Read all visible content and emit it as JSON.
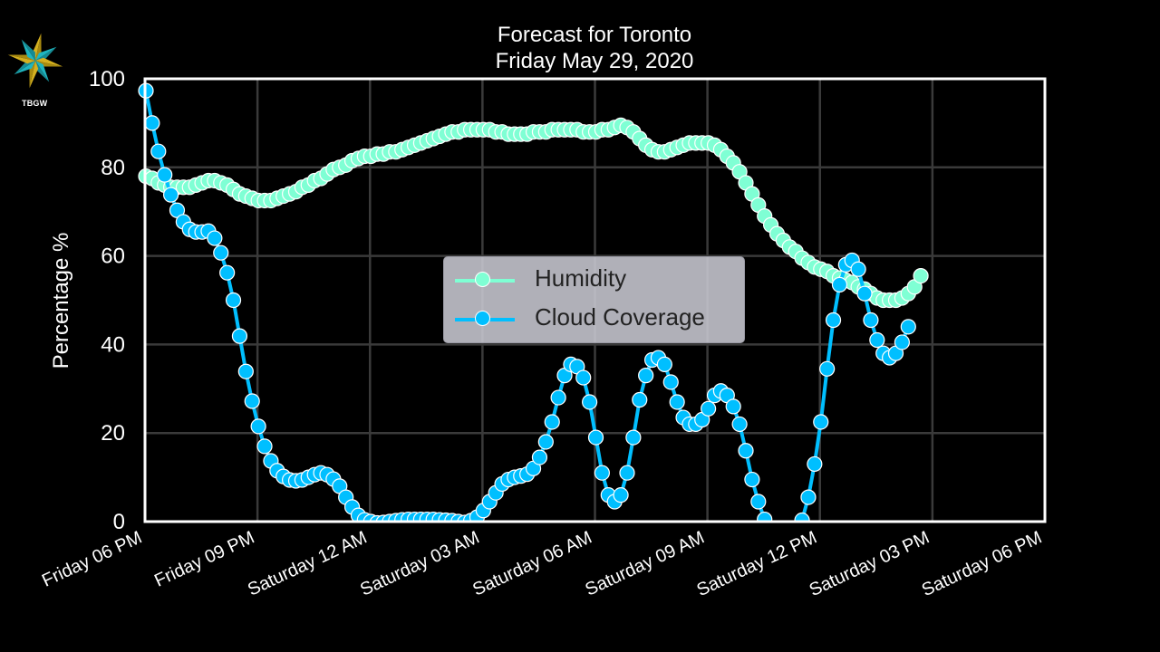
{
  "header": {
    "logo_text": "TBGW",
    "title_line1": "Forecast for Toronto",
    "title_line2": "Friday May 29, 2020"
  },
  "colors": {
    "background": "#000000",
    "humidity": "#7fffd4",
    "cloud": "#00bfff",
    "grid": "#3a3a3a",
    "axes": "#ffffff",
    "legend_bg": "#c8c8d2"
  },
  "chart_data": {
    "type": "line",
    "title": "Forecast for Toronto\nFriday May 29, 2020",
    "xlabel": "",
    "ylabel": "Percentage %",
    "ylim": [
      0,
      100
    ],
    "yticks": [
      0,
      20,
      40,
      60,
      80,
      100
    ],
    "xticks": [
      "Friday 06 PM",
      "Friday 09 PM",
      "Saturday 12 AM",
      "Saturday 03 AM",
      "Saturday 06 AM",
      "Saturday 09 AM",
      "Saturday 12 PM",
      "Saturday 03 PM",
      "Saturday 06 PM"
    ],
    "x_interval_minutes": 10,
    "x_start": "Friday 06 PM",
    "grid": true,
    "legend_position": "center",
    "series": [
      {
        "name": "Humidity",
        "color": "#7fffd4",
        "values": [
          78,
          77.5,
          76.5,
          76,
          75.5,
          75.5,
          75.5,
          75.5,
          76,
          76.5,
          77,
          77,
          76.5,
          76,
          75,
          74,
          73.5,
          73,
          72.5,
          72.5,
          72.5,
          73,
          73.5,
          74,
          74.5,
          75.5,
          76,
          77,
          77.5,
          78.5,
          79.5,
          80,
          80.5,
          81.5,
          82,
          82.5,
          82.5,
          83,
          83,
          83.5,
          83.5,
          84,
          84.5,
          85,
          85.5,
          86,
          86.5,
          87,
          87.5,
          88,
          88,
          88.5,
          88.5,
          88.5,
          88.5,
          88.5,
          88,
          88,
          87.5,
          87.5,
          87.5,
          87.5,
          88,
          88,
          88,
          88.5,
          88.5,
          88.5,
          88.5,
          88.5,
          88,
          88,
          88,
          88.5,
          88.5,
          89,
          89.5,
          89,
          88,
          86.5,
          85,
          84,
          83.5,
          83.5,
          84,
          84.5,
          85,
          85.5,
          85.5,
          85.5,
          85.5,
          85,
          84,
          82.5,
          81,
          79,
          76.5,
          74,
          71.5,
          69,
          67,
          65,
          63.5,
          62,
          61,
          59.5,
          58.5,
          57.5,
          57,
          56.5,
          55.5,
          55,
          54.5,
          54,
          53,
          52.5,
          51.5,
          50.5,
          50,
          50,
          50,
          50.5,
          51.5,
          53,
          55.5
        ]
      },
      {
        "name": "Cloud Coverage",
        "color": "#00bfff",
        "values": [
          97.3,
          90,
          83.6,
          78.3,
          73.8,
          70.3,
          67.7,
          66,
          65.4,
          65.4,
          65.6,
          64,
          60.7,
          56.2,
          50,
          41.9,
          33.9,
          27.2,
          21.5,
          17,
          13.7,
          11.5,
          10.2,
          9.4,
          9.2,
          9.4,
          10,
          10.6,
          11,
          10.6,
          9.6,
          8,
          5.5,
          3.3,
          1.4,
          0.4,
          0,
          -0.3,
          -0.2,
          0,
          0.2,
          0.4,
          0.5,
          0.5,
          0.5,
          0.5,
          0.5,
          0.4,
          0.3,
          0.2,
          0,
          -0.2,
          0.2,
          1,
          2.5,
          4.5,
          6.5,
          8.5,
          9.5,
          10,
          10.3,
          10.7,
          12,
          14.5,
          18,
          22.5,
          28,
          33,
          35.5,
          35,
          32.5,
          27,
          19,
          11,
          6,
          4.5,
          6,
          11,
          19,
          27.5,
          33,
          36.5,
          37,
          35.5,
          31.5,
          27,
          23.5,
          22,
          22,
          23,
          25.5,
          28.5,
          29.5,
          28.5,
          26,
          22,
          16,
          9.5,
          4.5,
          0.5,
          -3,
          -6,
          -6,
          -4,
          -1,
          0.3,
          5.5,
          13,
          22.5,
          34.5,
          45.5,
          53.5,
          58,
          59,
          57,
          51.5,
          45.5,
          41,
          38,
          37,
          38,
          40.5,
          44
        ]
      }
    ]
  },
  "legend": {
    "items": [
      {
        "label": "Humidity"
      },
      {
        "label": "Cloud Coverage"
      }
    ]
  }
}
